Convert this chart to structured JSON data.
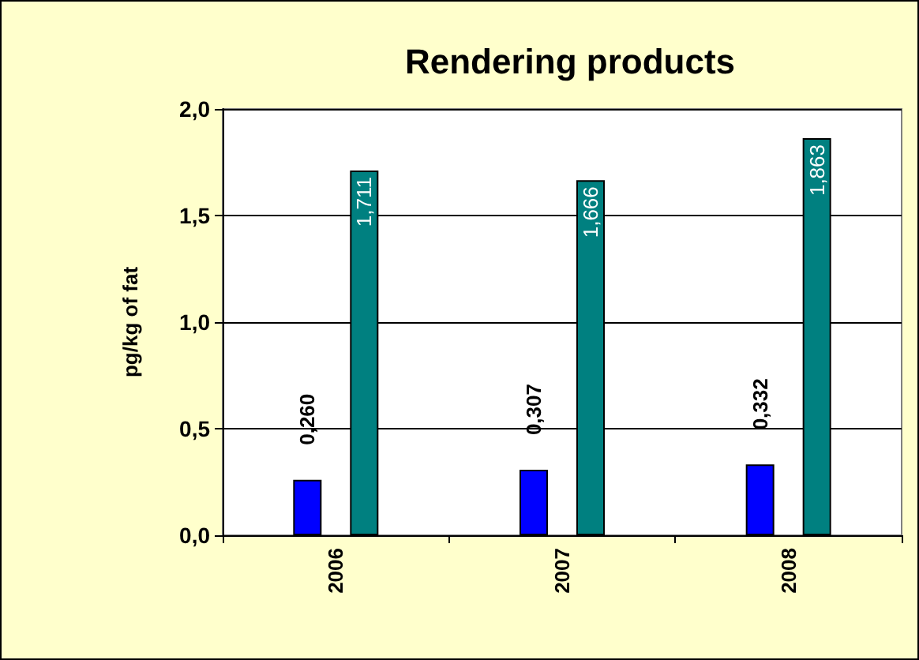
{
  "chart_data": {
    "type": "bar",
    "title": "Rendering products",
    "ylabel": "pg/kg of fat",
    "categories": [
      "2006",
      "2007",
      "2008"
    ],
    "series": [
      {
        "color": "#0000ff",
        "values": [
          0.26,
          0.307,
          0.332
        ],
        "value_labels": [
          "0,260",
          "0,307",
          "0,332"
        ]
      },
      {
        "color": "#008080",
        "values": [
          1.711,
          1.666,
          1.863
        ],
        "value_labels": [
          "1,711",
          "1,666",
          "1,863"
        ]
      }
    ],
    "ylim": [
      0,
      2
    ],
    "yticks": [
      {
        "value": 0,
        "label": "0,0"
      },
      {
        "value": 0.5,
        "label": "0,5"
      },
      {
        "value": 1,
        "label": "1,0"
      },
      {
        "value": 1.5,
        "label": "1,5"
      },
      {
        "value": 2,
        "label": "2,0"
      }
    ],
    "grid": "y"
  }
}
